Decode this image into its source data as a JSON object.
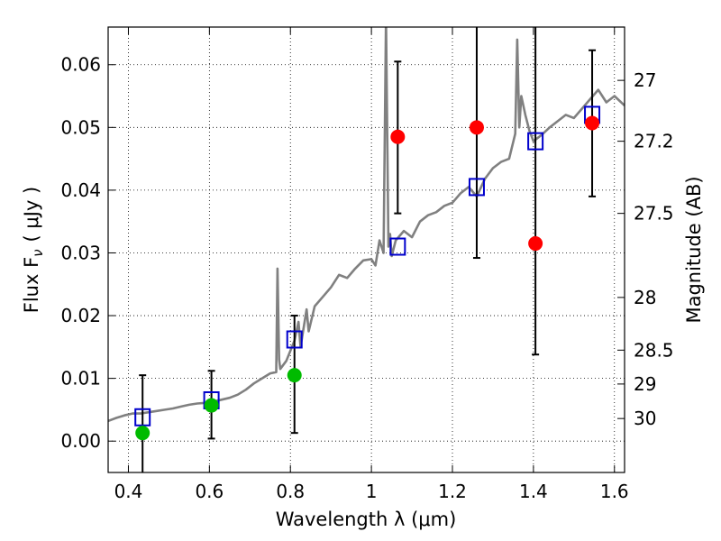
{
  "chart_data": {
    "type": "scatter",
    "title": "",
    "xlabel": "Wavelength  λ (μm)",
    "ylabel": "Flux  F",
    "ylabel_subscript": "ν",
    "ylabel_unit": "( μJy )",
    "y2label": "Magnitude (AB)",
    "xlim": [
      0.35,
      1.625
    ],
    "ylim": [
      -0.005,
      0.066
    ],
    "grid": true,
    "x_ticks": [
      0.4,
      0.6,
      0.8,
      1.0,
      1.2,
      1.4,
      1.6
    ],
    "x_tick_labels": [
      "0.4",
      "0.6",
      "0.8",
      "1",
      "1.2",
      "1.4",
      "1.6"
    ],
    "y_ticks": [
      0.0,
      0.01,
      0.02,
      0.03,
      0.04,
      0.05,
      0.06
    ],
    "y_tick_labels": [
      "0.00",
      "0.01",
      "0.02",
      "0.03",
      "0.04",
      "0.05",
      "0.06"
    ],
    "y2_ticks": [
      {
        "label": "27",
        "flux": 0.0575
      },
      {
        "label": "27.2",
        "flux": 0.0478
      },
      {
        "label": "27.5",
        "flux": 0.0363
      },
      {
        "label": "28",
        "flux": 0.0229
      },
      {
        "label": "28.5",
        "flux": 0.0145
      },
      {
        "label": "29",
        "flux": 0.0091
      },
      {
        "label": "30",
        "flux": 0.0036
      }
    ],
    "series": [
      {
        "marker": "line",
        "color": "#808080",
        "x": [
          0.35,
          0.37,
          0.39,
          0.41,
          0.43,
          0.45,
          0.47,
          0.49,
          0.51,
          0.53,
          0.55,
          0.57,
          0.59,
          0.61,
          0.63,
          0.65,
          0.67,
          0.69,
          0.71,
          0.73,
          0.75,
          0.765,
          0.768,
          0.772,
          0.775,
          0.79,
          0.81,
          0.82,
          0.825,
          0.84,
          0.845,
          0.86,
          0.88,
          0.9,
          0.92,
          0.94,
          0.96,
          0.98,
          1.0,
          1.01,
          1.02,
          1.03,
          1.036,
          1.042,
          1.046,
          1.05,
          1.06,
          1.08,
          1.1,
          1.12,
          1.14,
          1.16,
          1.18,
          1.2,
          1.22,
          1.24,
          1.26,
          1.28,
          1.3,
          1.32,
          1.34,
          1.355,
          1.36,
          1.365,
          1.37,
          1.38,
          1.39,
          1.4,
          1.42,
          1.44,
          1.46,
          1.48,
          1.5,
          1.52,
          1.54,
          1.56,
          1.58,
          1.6,
          1.625
        ],
        "values": [
          0.0032,
          0.0037,
          0.0041,
          0.0044,
          0.0044,
          0.0046,
          0.0048,
          0.005,
          0.0052,
          0.0055,
          0.0058,
          0.006,
          0.0061,
          0.0063,
          0.0066,
          0.0069,
          0.0074,
          0.0082,
          0.0092,
          0.01,
          0.0108,
          0.011,
          0.0275,
          0.013,
          0.0115,
          0.0128,
          0.016,
          0.019,
          0.015,
          0.021,
          0.0175,
          0.0215,
          0.023,
          0.0245,
          0.0265,
          0.026,
          0.0275,
          0.0288,
          0.029,
          0.028,
          0.032,
          0.03,
          0.0675,
          0.031,
          0.033,
          0.0295,
          0.032,
          0.0335,
          0.0325,
          0.035,
          0.036,
          0.0365,
          0.0375,
          0.038,
          0.0395,
          0.0405,
          0.039,
          0.0418,
          0.0435,
          0.0445,
          0.045,
          0.049,
          0.064,
          0.05,
          0.055,
          0.052,
          0.0495,
          0.0478,
          0.0488,
          0.05,
          0.051,
          0.052,
          0.0515,
          0.053,
          0.0545,
          0.056,
          0.054,
          0.055,
          0.0535
        ]
      },
      {
        "name": "",
        "marker": "open-square",
        "color": "#0000cc",
        "x": [
          0.435,
          0.605,
          0.81,
          1.065,
          1.26,
          1.405,
          1.545
        ],
        "values": [
          0.0038,
          0.0065,
          0.0162,
          0.031,
          0.0405,
          0.0478,
          0.052
        ]
      },
      {
        "name": "",
        "marker": "filled-circle",
        "color": "#00bb00",
        "x": [
          0.435,
          0.605,
          0.81
        ],
        "values": [
          0.0013,
          0.0057,
          0.0105
        ],
        "err_low": [
          -0.0075,
          0.0004,
          0.0013
        ],
        "err_high": [
          0.0105,
          0.0112,
          0.02
        ]
      },
      {
        "name": "",
        "marker": "filled-circle",
        "color": "#ff0000",
        "x": [
          1.065,
          1.26,
          1.405,
          1.545
        ],
        "values": [
          0.0485,
          0.05,
          0.0315,
          0.0507
        ],
        "err_low": [
          0.0363,
          0.0292,
          0.0138,
          0.039
        ],
        "err_high": [
          0.0605,
          0.0675,
          0.0675,
          0.0623
        ]
      }
    ]
  }
}
